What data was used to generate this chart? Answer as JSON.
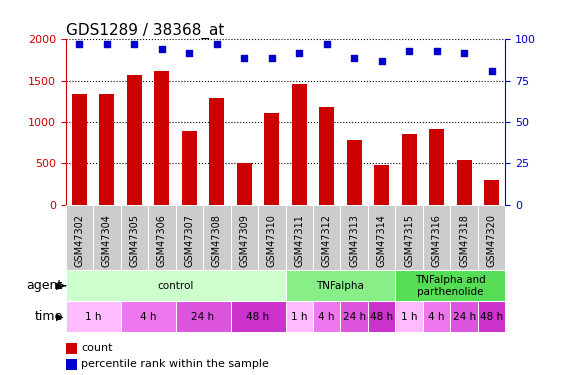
{
  "title": "GDS1289 / 38368_at",
  "samples": [
    "GSM47302",
    "GSM47304",
    "GSM47305",
    "GSM47306",
    "GSM47307",
    "GSM47308",
    "GSM47309",
    "GSM47310",
    "GSM47311",
    "GSM47312",
    "GSM47313",
    "GSM47314",
    "GSM47315",
    "GSM47316",
    "GSM47318",
    "GSM47320"
  ],
  "counts": [
    1340,
    1340,
    1570,
    1620,
    890,
    1290,
    510,
    1105,
    1460,
    1180,
    780,
    480,
    855,
    920,
    540,
    295
  ],
  "percentiles": [
    97,
    97,
    97,
    94,
    92,
    97,
    89,
    89,
    92,
    97,
    89,
    87,
    93,
    93,
    92,
    81
  ],
  "ylim_left": [
    0,
    2000
  ],
  "ylim_right": [
    0,
    100
  ],
  "yticks_left": [
    0,
    500,
    1000,
    1500,
    2000
  ],
  "yticks_right": [
    0,
    25,
    50,
    75,
    100
  ],
  "bar_color": "#cc0000",
  "dot_color": "#0000cc",
  "bar_width": 0.55,
  "agent_groups": [
    {
      "label": "control",
      "start": 0,
      "end": 7,
      "color": "#ccffcc"
    },
    {
      "label": "TNFalpha",
      "start": 8,
      "end": 11,
      "color": "#88ee88"
    },
    {
      "label": "TNFalpha and\nparthenolide",
      "start": 12,
      "end": 15,
      "color": "#55dd55"
    }
  ],
  "time_groups": [
    {
      "label": "1 h",
      "start": 0,
      "end": 1,
      "color": "#ffbbff"
    },
    {
      "label": "4 h",
      "start": 2,
      "end": 3,
      "color": "#ee77ee"
    },
    {
      "label": "24 h",
      "start": 4,
      "end": 5,
      "color": "#dd55dd"
    },
    {
      "label": "48 h",
      "start": 6,
      "end": 7,
      "color": "#cc33cc"
    },
    {
      "label": "1 h",
      "start": 8,
      "end": 8,
      "color": "#ffbbff"
    },
    {
      "label": "4 h",
      "start": 9,
      "end": 9,
      "color": "#ee77ee"
    },
    {
      "label": "24 h",
      "start": 10,
      "end": 10,
      "color": "#dd55dd"
    },
    {
      "label": "48 h",
      "start": 11,
      "end": 11,
      "color": "#cc33cc"
    },
    {
      "label": "1 h",
      "start": 12,
      "end": 12,
      "color": "#ffbbff"
    },
    {
      "label": "4 h",
      "start": 13,
      "end": 13,
      "color": "#ee77ee"
    },
    {
      "label": "24 h",
      "start": 14,
      "end": 14,
      "color": "#dd55dd"
    },
    {
      "label": "48 h",
      "start": 15,
      "end": 15,
      "color": "#cc33cc"
    }
  ],
  "left_axis_color": "#cc0000",
  "right_axis_color": "#0000cc",
  "agent_label": "agent",
  "time_label": "time",
  "legend_count_label": "count",
  "legend_pct_label": "percentile rank within the sample",
  "bg_color": "#ffffff",
  "sample_bg_color": "#cccccc",
  "title_fontsize": 11,
  "tick_fontsize": 8,
  "label_fontsize": 9,
  "sample_fontsize": 7,
  "row_fontsize": 7.5
}
